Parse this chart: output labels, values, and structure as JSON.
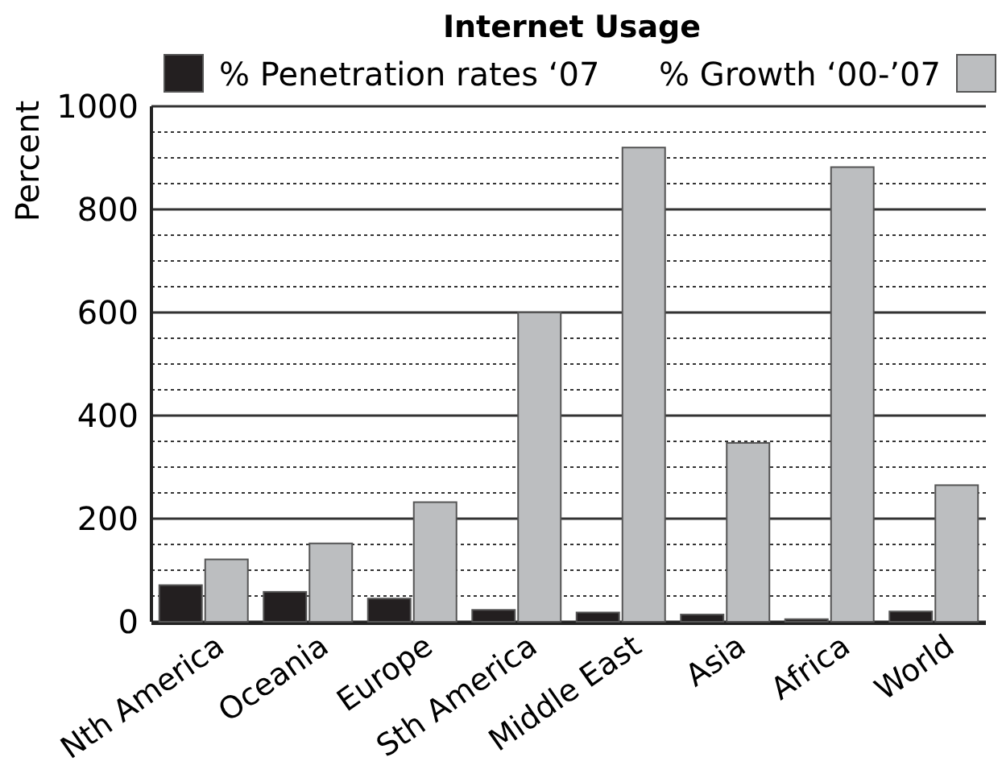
{
  "chart_data": {
    "type": "bar",
    "title": "Internet Usage",
    "ylabel": "Percent",
    "categories": [
      "Nth America",
      "Oceania",
      "Europe",
      "Sth America",
      "Middle East",
      "Asia",
      "Africa",
      "World"
    ],
    "series": [
      {
        "name": "% Penetration rates ‘07",
        "color": "#231f20",
        "values": [
          71,
          58,
          45,
          23,
          18,
          14,
          5,
          20
        ]
      },
      {
        "name": "% Growth ‘00-’07",
        "color": "#bcbec0",
        "values": [
          121,
          152,
          232,
          600,
          920,
          347,
          882,
          265
        ]
      }
    ],
    "ylim": [
      0,
      1000
    ],
    "yticks": [
      0,
      {
        "value": 50,
        "label": null
      },
      {
        "value": 100,
        "label": null
      },
      {
        "value": 150,
        "label": null
      },
      200,
      {
        "value": 250,
        "label": null
      },
      {
        "value": 300,
        "label": null
      },
      {
        "value": 350,
        "label": null
      },
      400,
      {
        "value": 450,
        "label": null
      },
      {
        "value": 500,
        "label": null
      },
      {
        "value": 550,
        "label": null
      },
      600,
      {
        "value": 650,
        "label": null
      },
      {
        "value": 700,
        "label": null
      },
      {
        "value": 750,
        "label": null
      },
      800,
      {
        "value": 850,
        "label": null
      },
      {
        "value": 900,
        "label": null
      },
      {
        "value": 950,
        "label": null
      },
      1000
    ],
    "grid": "y",
    "legend": "top"
  }
}
